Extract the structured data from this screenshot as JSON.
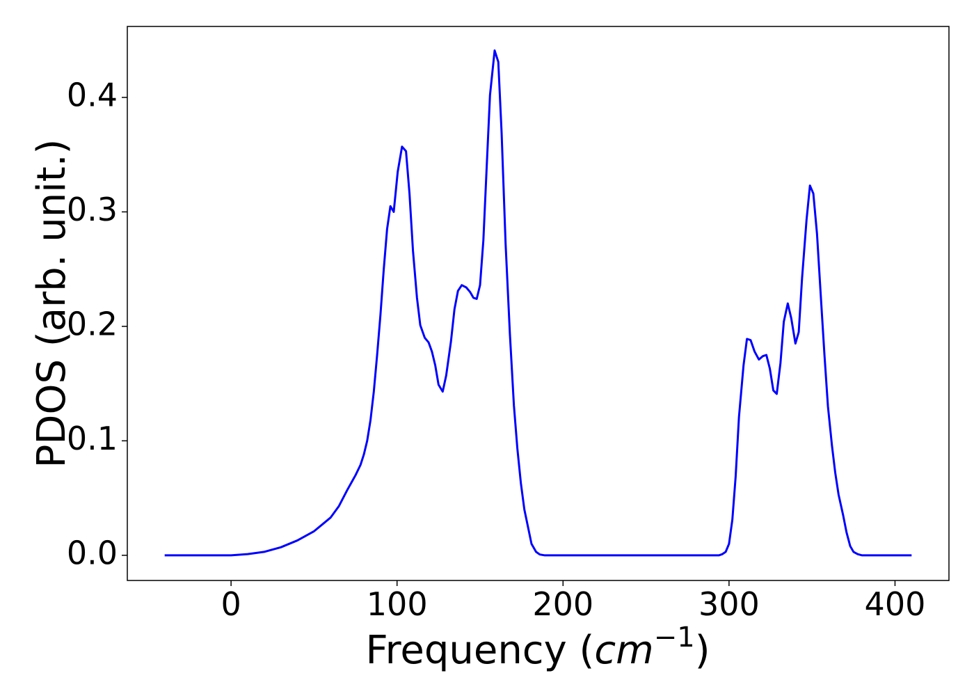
{
  "chart_data": {
    "type": "line",
    "xlabel": {
      "text": "Frequency (",
      "math": "cm",
      "sup": "−1",
      "end": ")"
    },
    "ylabel": "PDOS (arb. unit.)",
    "x": [
      -40,
      0,
      10,
      20,
      30,
      40,
      50,
      55,
      60,
      65,
      70,
      75,
      78,
      80,
      82,
      84,
      86,
      88,
      90,
      92,
      94,
      96,
      98,
      100.4,
      103,
      105.4,
      107.5,
      109.6,
      112,
      114,
      116.7,
      119,
      121,
      123,
      125,
      127.5,
      129.6,
      132.5,
      134.6,
      136.7,
      139,
      141.7,
      144,
      146,
      148,
      150,
      152,
      154,
      156,
      158.8,
      161,
      163,
      165.4,
      168,
      170.4,
      172.5,
      174.6,
      176.7,
      179,
      181,
      183.75,
      186,
      188.75,
      294,
      296,
      298,
      300,
      302,
      304,
      306,
      308.75,
      310.8,
      313,
      315.4,
      318,
      320.4,
      322.5,
      324.6,
      326.7,
      328.75,
      331,
      333,
      335.4,
      337.5,
      340,
      342,
      344,
      346.7,
      348.75,
      350.8,
      353,
      355.4,
      357.5,
      359.6,
      362,
      364,
      366,
      368.75,
      370.8,
      373,
      375,
      377.5,
      380,
      410
    ],
    "series": [
      {
        "name": "PDOS",
        "color": "#0000ff",
        "values": [
          0,
          0,
          0.001,
          0.003,
          0.007,
          0.013,
          0.021,
          0.027,
          0.033,
          0.043,
          0.057,
          0.07,
          0.079,
          0.088,
          0.1,
          0.118,
          0.143,
          0.175,
          0.21,
          0.25,
          0.285,
          0.305,
          0.3,
          0.335,
          0.357,
          0.353,
          0.316,
          0.266,
          0.225,
          0.201,
          0.19,
          0.186,
          0.178,
          0.166,
          0.149,
          0.143,
          0.157,
          0.187,
          0.215,
          0.231,
          0.236,
          0.234,
          0.23,
          0.225,
          0.224,
          0.236,
          0.275,
          0.339,
          0.402,
          0.441,
          0.431,
          0.369,
          0.272,
          0.193,
          0.131,
          0.093,
          0.063,
          0.04,
          0.024,
          0.01,
          0.003,
          0.0007,
          0,
          0,
          0.001,
          0.003,
          0.01,
          0.031,
          0.069,
          0.121,
          0.166,
          0.189,
          0.188,
          0.178,
          0.171,
          0.174,
          0.175,
          0.163,
          0.144,
          0.141,
          0.168,
          0.204,
          0.22,
          0.207,
          0.185,
          0.195,
          0.242,
          0.293,
          0.323,
          0.316,
          0.281,
          0.224,
          0.175,
          0.13,
          0.096,
          0.072,
          0.053,
          0.035,
          0.02,
          0.008,
          0.003,
          0.001,
          0,
          0
        ]
      }
    ],
    "xlim": [
      -62.5,
      432.5
    ],
    "ylim": [
      -0.022,
      0.462
    ],
    "xticks": [
      0,
      100,
      200,
      300,
      400
    ],
    "yticks": [
      {
        "value": 0,
        "label": "0.0"
      },
      0.1,
      0.2,
      0.3,
      0.4
    ]
  }
}
